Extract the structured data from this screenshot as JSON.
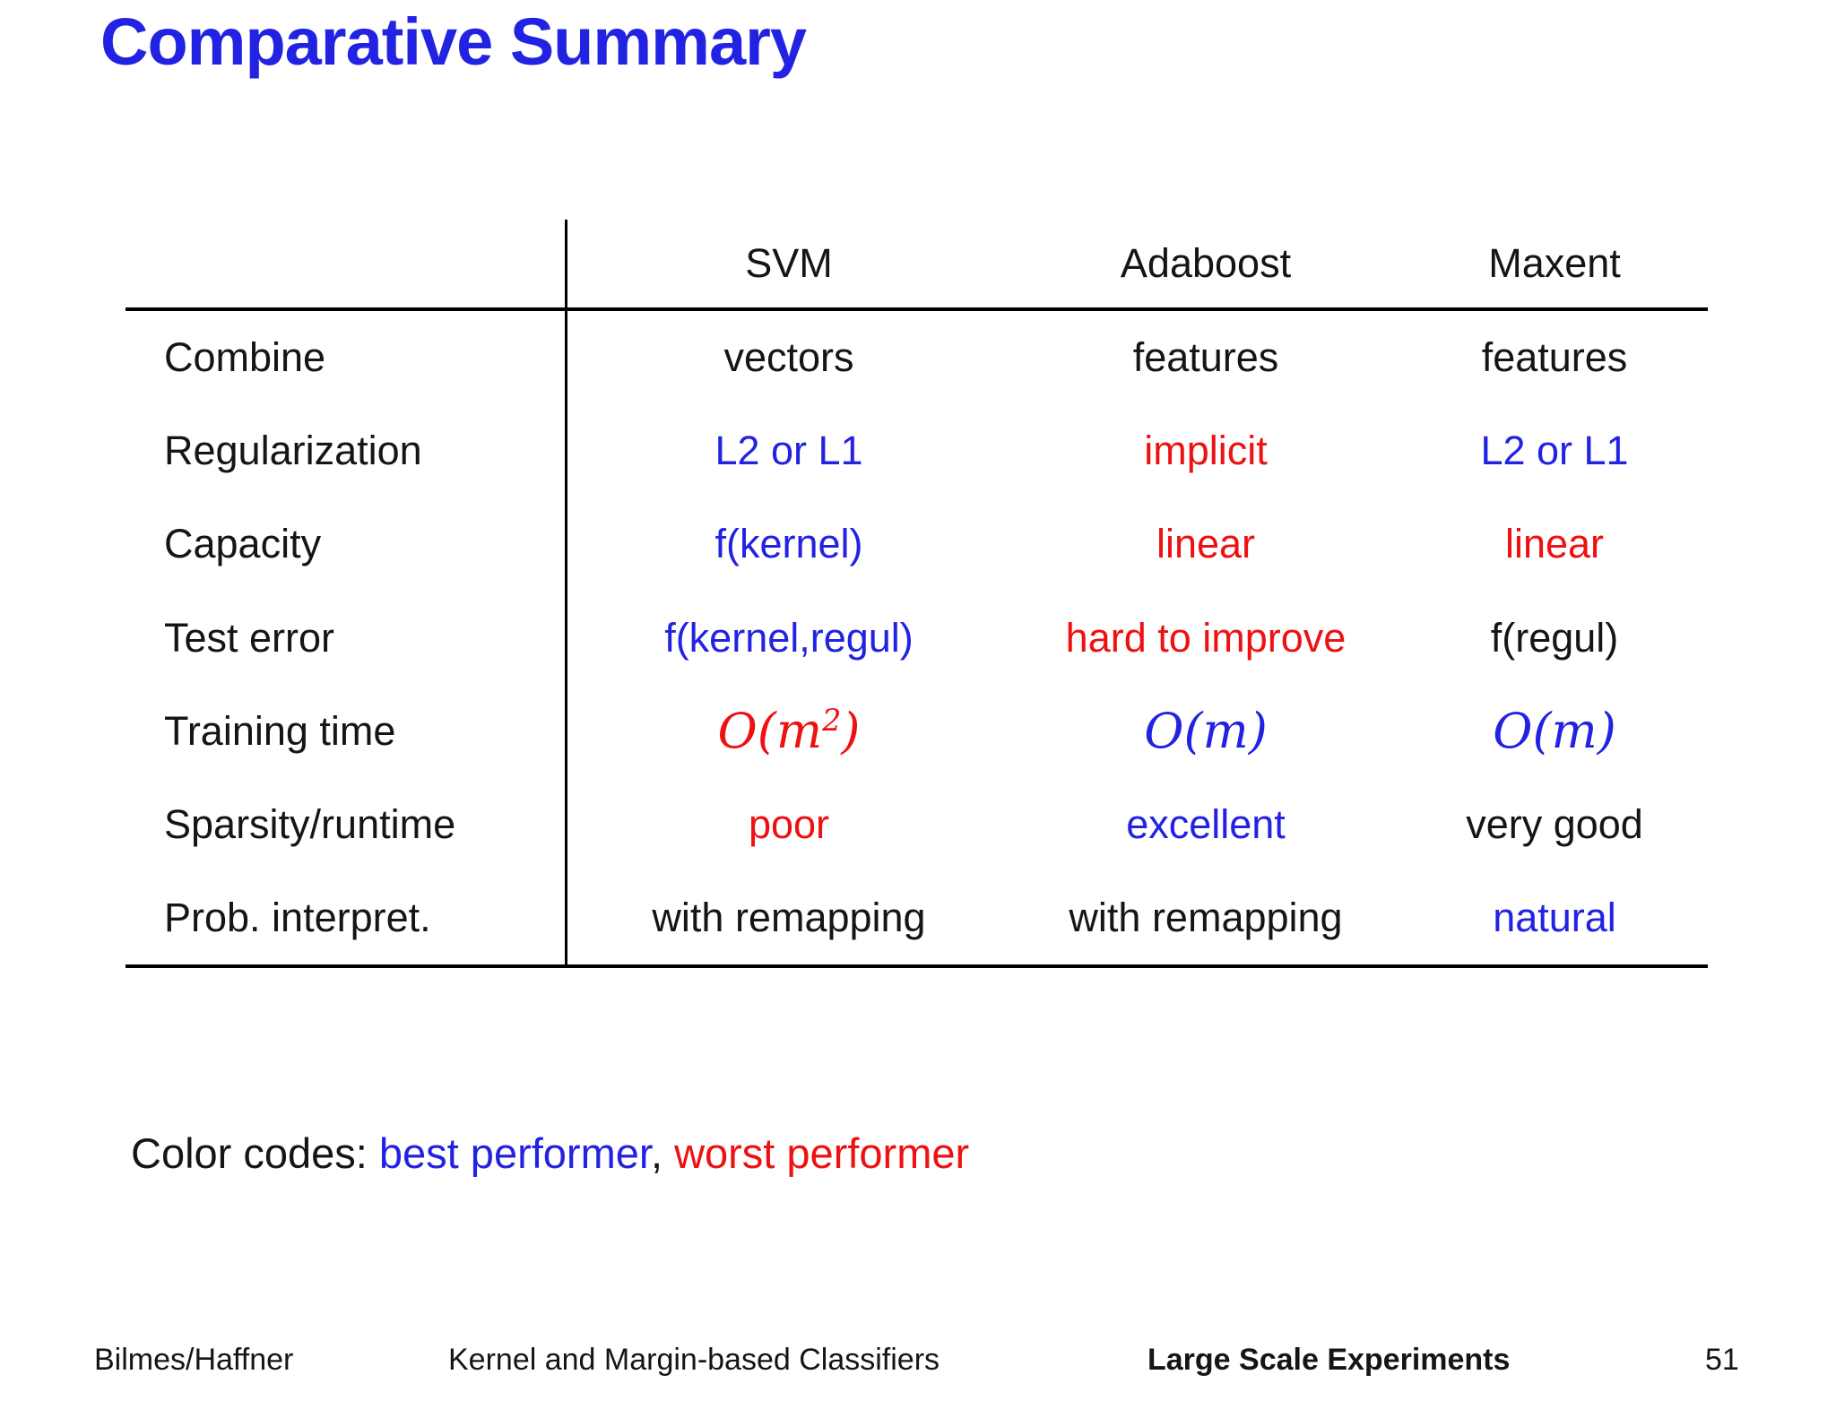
{
  "title": "Comparative Summary",
  "table": {
    "column_headers": [
      "SVM",
      "Adaboost",
      "Maxent"
    ],
    "rows": [
      {
        "label": "Combine",
        "cells": [
          {
            "text": "vectors",
            "style": "black"
          },
          {
            "text": "features",
            "style": "black"
          },
          {
            "text": "features",
            "style": "black"
          }
        ]
      },
      {
        "label": "Regularization",
        "cells": [
          {
            "text": "L2 or L1",
            "style": "blue"
          },
          {
            "text": "implicit",
            "style": "red"
          },
          {
            "text": "L2 or L1",
            "style": "blue"
          }
        ]
      },
      {
        "label": "Capacity",
        "cells": [
          {
            "text": "f(kernel)",
            "style": "blue"
          },
          {
            "text": "linear",
            "style": "red"
          },
          {
            "text": "linear",
            "style": "red"
          }
        ]
      },
      {
        "label": "Test error",
        "cells": [
          {
            "text": "f(kernel,regul)",
            "style": "blue"
          },
          {
            "text": "hard to improve",
            "style": "red"
          },
          {
            "text": "f(regul)",
            "style": "black"
          }
        ]
      },
      {
        "label": "Training time",
        "cells": [
          {
            "text": "O(m^2)",
            "style": "red",
            "math": true
          },
          {
            "text": "O(m)",
            "style": "blue",
            "math": true
          },
          {
            "text": "O(m)",
            "style": "blue",
            "math": true
          }
        ]
      },
      {
        "label": "Sparsity/runtime",
        "cells": [
          {
            "text": "poor",
            "style": "red"
          },
          {
            "text": "excellent",
            "style": "blue"
          },
          {
            "text": "very good",
            "style": "black"
          }
        ]
      },
      {
        "label": "Prob. interpret.",
        "cells": [
          {
            "text": "with remapping",
            "style": "black"
          },
          {
            "text": "with remapping",
            "style": "black"
          },
          {
            "text": "natural",
            "style": "blue"
          }
        ]
      }
    ]
  },
  "color_codes": {
    "prefix": "Color codes: ",
    "best": "best performer",
    "separator": ", ",
    "worst": "worst performer"
  },
  "footer": {
    "authors": "Bilmes/Haffner",
    "deck_title": "Kernel and Margin-based Classifiers",
    "section": "Large Scale Experiments",
    "page_number": "51"
  },
  "colors": {
    "best_blue": "#2222e2",
    "worst_red": "#ee1111",
    "text_black": "#151515"
  }
}
